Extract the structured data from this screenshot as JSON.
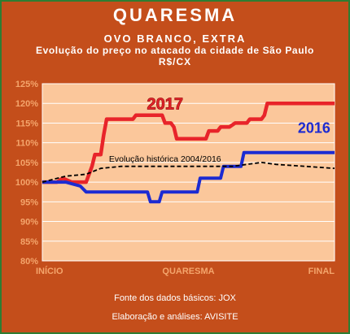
{
  "chart_data": {
    "type": "line",
    "title": "QUARESMA",
    "subtitle": "OVO BRANCO, EXTRA",
    "description": "Evolução do preço no atacado da cidade de São Paulo",
    "unit": "R$/CX",
    "x_labels": [
      "INÍCIO",
      "QUARESMA",
      "FINAL"
    ],
    "y_ticks": [
      "80%",
      "85%",
      "90%",
      "95%",
      "100%",
      "105%",
      "110%",
      "115%",
      "120%",
      "125%"
    ],
    "ylim": [
      80,
      125
    ],
    "grid": true,
    "series": [
      {
        "name": "2017",
        "color": "#e8242a",
        "label": "2017",
        "points": [
          [
            0,
            100
          ],
          [
            5,
            100
          ],
          [
            7,
            101
          ],
          [
            10,
            100
          ],
          [
            15,
            100
          ],
          [
            17,
            104
          ],
          [
            18,
            107
          ],
          [
            20,
            107
          ],
          [
            21,
            112
          ],
          [
            22,
            116
          ],
          [
            25,
            116
          ],
          [
            27,
            116
          ],
          [
            31,
            116
          ],
          [
            32,
            117
          ],
          [
            38,
            117
          ],
          [
            41,
            117
          ],
          [
            42,
            115
          ],
          [
            44,
            115
          ],
          [
            45,
            114
          ],
          [
            46,
            111
          ],
          [
            50,
            111
          ],
          [
            55,
            111
          ],
          [
            56,
            111
          ],
          [
            57,
            113
          ],
          [
            60,
            113
          ],
          [
            61,
            114
          ],
          [
            64,
            114
          ],
          [
            66,
            115
          ],
          [
            70,
            115
          ],
          [
            71,
            116
          ],
          [
            75,
            116
          ],
          [
            76,
            117
          ],
          [
            77,
            120
          ],
          [
            80,
            120
          ],
          [
            84,
            120
          ],
          [
            87,
            120
          ],
          [
            90,
            120
          ],
          [
            95,
            120
          ],
          [
            100,
            120
          ]
        ]
      },
      {
        "name": "2016",
        "color": "#1c2bd2",
        "label": "2016",
        "points": [
          [
            0,
            100
          ],
          [
            8,
            100
          ],
          [
            13,
            99
          ],
          [
            15,
            97.5
          ],
          [
            20,
            97.5
          ],
          [
            25,
            97.5
          ],
          [
            27,
            97.5
          ],
          [
            30,
            97.5
          ],
          [
            36,
            97.5
          ],
          [
            37,
            95
          ],
          [
            40,
            95
          ],
          [
            41,
            97.5
          ],
          [
            50,
            97.5
          ],
          [
            53,
            97.5
          ],
          [
            54,
            101
          ],
          [
            61,
            101
          ],
          [
            62,
            104
          ],
          [
            68,
            104
          ],
          [
            69,
            107.5
          ],
          [
            100,
            107.5
          ]
        ]
      },
      {
        "name": "Evolução histórica 2004/2016",
        "color": "#000000",
        "label": "Evolução histórica 2004/2016",
        "points": [
          [
            0,
            100
          ],
          [
            8,
            101.5
          ],
          [
            15,
            102
          ],
          [
            20,
            103.5
          ],
          [
            27,
            104
          ],
          [
            33,
            104
          ],
          [
            40,
            104
          ],
          [
            45,
            104
          ],
          [
            50,
            104
          ],
          [
            55,
            104
          ],
          [
            60,
            104
          ],
          [
            65,
            104
          ],
          [
            70,
            104.5
          ],
          [
            75,
            105
          ],
          [
            80,
            104.5
          ],
          [
            90,
            104
          ],
          [
            100,
            103.5
          ]
        ]
      }
    ]
  },
  "footer": {
    "source": "Fonte dos dados básicos: JOX",
    "credit": "Elaboração e análises: AVISITE"
  },
  "colors": {
    "background": "#c44e1b",
    "plot_background": "#fbc79b",
    "grid": "#ffffff",
    "axis_text": "#f4a56c"
  }
}
